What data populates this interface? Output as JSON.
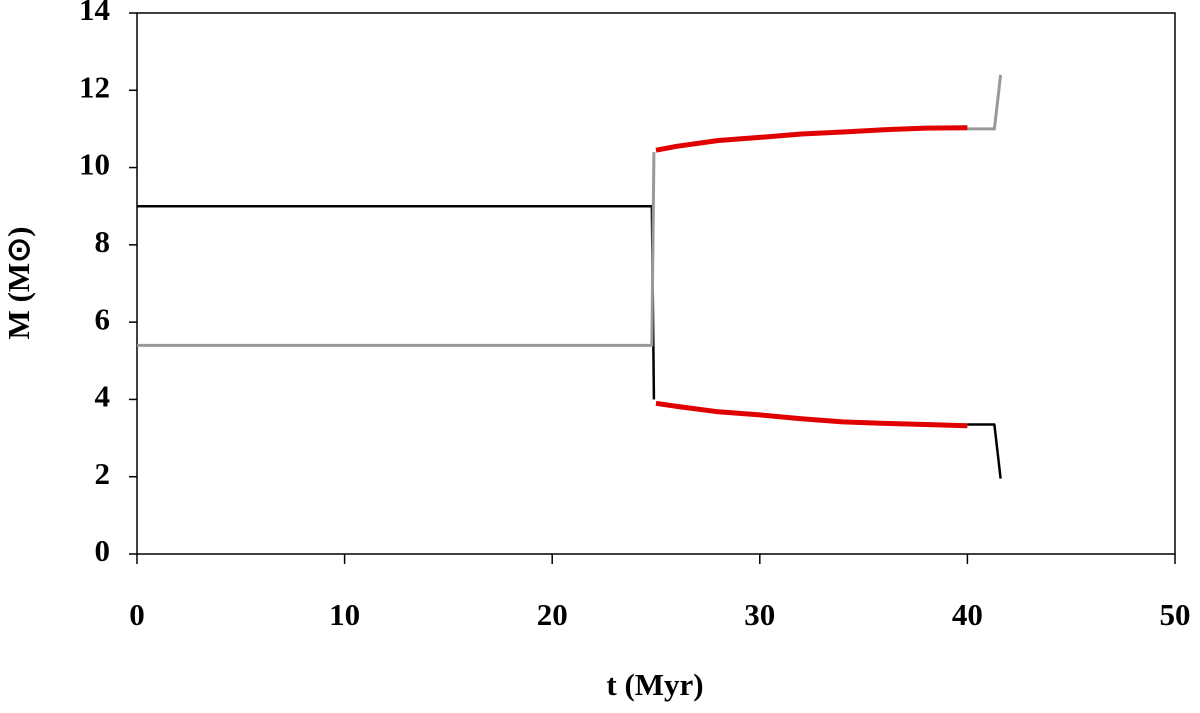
{
  "chart_data": {
    "type": "line",
    "xlabel": "t (Myr)",
    "ylabel": "M (M⊙)",
    "xlim": [
      0,
      50
    ],
    "xticks": [
      0,
      10,
      20,
      30,
      40,
      50
    ],
    "ylim": [
      0,
      14
    ],
    "yticks": [
      0,
      2,
      4,
      6,
      8,
      10,
      12,
      14
    ],
    "grid": false,
    "series": [
      {
        "color": "#000000",
        "width": 2.5,
        "x": [
          0,
          24.8,
          24.9,
          25.0,
          40.0,
          41.3,
          41.6
        ],
        "values": [
          9,
          9,
          4.0,
          null,
          3.35,
          3.35,
          1.95
        ]
      },
      {
        "color": "#999999",
        "width": 3,
        "x": [
          0,
          24.8,
          24.9,
          25.0,
          40.0,
          41.3,
          41.6
        ],
        "values": [
          5.4,
          5.4,
          10.4,
          null,
          11.0,
          11.0,
          12.4
        ]
      },
      {
        "color": "#e00000",
        "width": 5,
        "x": [
          25,
          26,
          28,
          30,
          32,
          34,
          36,
          38,
          40
        ],
        "values": [
          10.45,
          10.55,
          10.7,
          10.78,
          10.87,
          10.92,
          10.98,
          11.02,
          11.03
        ]
      },
      {
        "color": "#e00000",
        "width": 5,
        "x": [
          25,
          26,
          28,
          30,
          32,
          34,
          36,
          38,
          40
        ],
        "values": [
          3.9,
          3.82,
          3.68,
          3.6,
          3.5,
          3.42,
          3.38,
          3.35,
          3.32
        ]
      }
    ]
  }
}
